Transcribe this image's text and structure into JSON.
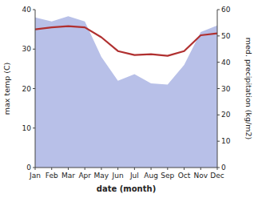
{
  "chart_data": {
    "type": "line",
    "categories": [
      "Jan",
      "Feb",
      "Mar",
      "Apr",
      "May",
      "Jun",
      "Jul",
      "Aug",
      "Sep",
      "Oct",
      "Nov",
      "Dec"
    ],
    "xlabel": "date (month)",
    "ylabel": "max temp (C)",
    "y2label": "med. precipitation (kg/m2)",
    "series": [
      {
        "type": "area",
        "axis": "y2",
        "color": "#b8c0e8",
        "values": [
          57.0,
          55.5,
          57.5,
          55.5,
          42.0,
          33.0,
          35.5,
          32.0,
          31.5,
          39.0,
          51.5,
          54.0
        ]
      },
      {
        "type": "line",
        "color": "#b03030",
        "values": [
          35.0,
          35.5,
          35.8,
          35.5,
          33.0,
          29.5,
          28.5,
          28.7,
          28.3,
          29.5,
          33.5,
          34.0
        ]
      }
    ],
    "ylim": [
      0,
      40
    ],
    "yticks": [
      0,
      10,
      20,
      30,
      40
    ],
    "y2lim": [
      0,
      60
    ],
    "y2ticks": [
      0,
      10,
      20,
      30,
      40,
      50,
      60
    ],
    "grid": false
  }
}
